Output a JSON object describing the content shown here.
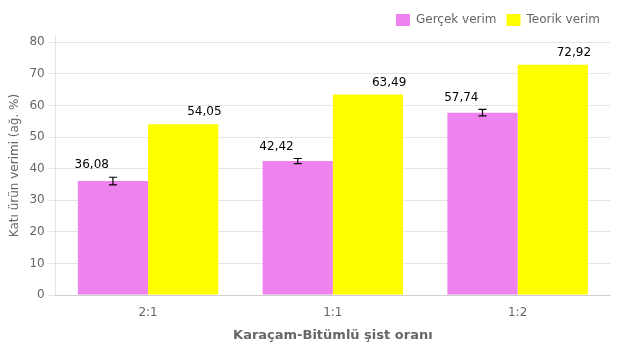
{
  "chart_data": {
    "type": "bar",
    "categories": [
      "2:1",
      "1:1",
      "1:2"
    ],
    "series": [
      {
        "name": "Gerçek verim",
        "color": "#EE82EE",
        "values": [
          36.08,
          42.42,
          57.74
        ],
        "value_labels": [
          "36,08",
          "42,42",
          "57,74"
        ],
        "errors": [
          1.2,
          0.8,
          1.0
        ]
      },
      {
        "name": "Teorik verim",
        "color": "#FFFF00",
        "values": [
          54.05,
          63.49,
          72.92
        ],
        "value_labels": [
          "54,05",
          "63,49",
          "72,92"
        ]
      }
    ],
    "xlabel": "Karaçam-Bitümlü şist oranı",
    "ylabel": "Katı ürün verimi (ağ. %)",
    "ylim": [
      0,
      82
    ],
    "yticks": [
      0,
      10,
      20,
      30,
      40,
      50,
      60,
      70,
      80
    ],
    "grid": true,
    "legend": "upper right",
    "data_labels": true
  }
}
